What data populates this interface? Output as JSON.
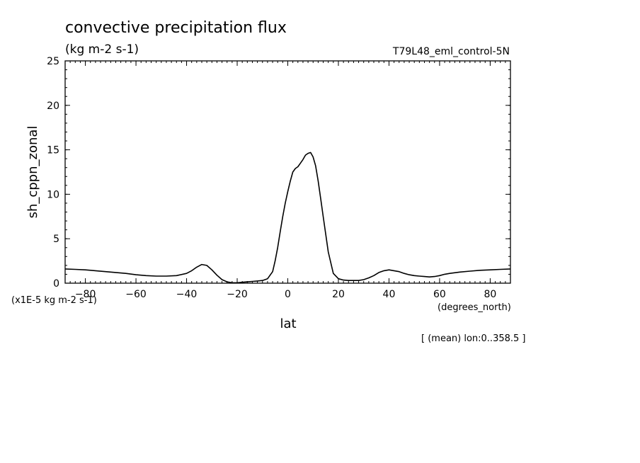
{
  "page": {
    "title": "convective precipitation flux",
    "units": "(kg m-2 s-1)",
    "run_label": "T79L48_eml_control-5N",
    "scale_note": "(x1E-5 kg m-2 s-1)",
    "x_units": "(degrees_north)",
    "footer_note": "[ (mean) lon:0..358.5 ]"
  },
  "chart_data": {
    "type": "line",
    "title": "convective precipitation flux",
    "subtitle": "(kg m-2 s-1)",
    "xlabel": "lat",
    "ylabel": "sh_cppn_zonal",
    "xlim": [
      -88,
      88
    ],
    "ylim": [
      0,
      25
    ],
    "x_ticks": [
      -80,
      -60,
      -40,
      -20,
      0,
      20,
      40,
      60,
      80
    ],
    "y_ticks": [
      0,
      5,
      10,
      15,
      20,
      25
    ],
    "x_tick_labels": [
      "-80",
      "-60",
      "-40",
      "-20",
      "0",
      "20",
      "40",
      "60",
      "80"
    ],
    "y_tick_labels": [
      "0",
      "5",
      "10",
      "15",
      "20",
      "25"
    ],
    "grid": false,
    "series": [
      {
        "color": "#000000",
        "x": [
          -88,
          -84,
          -80,
          -76,
          -72,
          -68,
          -64,
          -60,
          -56,
          -52,
          -48,
          -44,
          -40,
          -38,
          -36,
          -34,
          -32,
          -30,
          -28,
          -26,
          -24,
          -22,
          -20,
          -18,
          -16,
          -14,
          -12,
          -10,
          -8,
          -6,
          -5,
          -4,
          -3,
          -2,
          -1,
          0,
          1,
          2,
          3,
          4,
          5,
          6,
          7,
          8,
          9,
          10,
          11,
          12,
          13,
          14,
          15,
          16,
          18,
          20,
          22,
          24,
          26,
          28,
          30,
          32,
          34,
          36,
          38,
          40,
          42,
          44,
          46,
          48,
          50,
          52,
          54,
          56,
          58,
          60,
          62,
          64,
          68,
          72,
          76,
          80,
          84,
          88
        ],
        "y": [
          1.6,
          1.55,
          1.5,
          1.4,
          1.3,
          1.2,
          1.1,
          0.95,
          0.85,
          0.8,
          0.8,
          0.85,
          1.1,
          1.4,
          1.8,
          2.1,
          2.0,
          1.5,
          0.9,
          0.4,
          0.15,
          0.05,
          0.05,
          0.1,
          0.15,
          0.2,
          0.25,
          0.3,
          0.5,
          1.3,
          2.5,
          4.0,
          5.8,
          7.5,
          9.0,
          10.3,
          11.5,
          12.5,
          12.9,
          13.1,
          13.5,
          13.9,
          14.4,
          14.6,
          14.7,
          14.2,
          13.2,
          11.5,
          9.5,
          7.5,
          5.5,
          3.5,
          1.1,
          0.5,
          0.35,
          0.3,
          0.3,
          0.3,
          0.4,
          0.6,
          0.85,
          1.2,
          1.4,
          1.5,
          1.4,
          1.3,
          1.1,
          0.95,
          0.85,
          0.8,
          0.75,
          0.7,
          0.75,
          0.85,
          1.0,
          1.1,
          1.25,
          1.35,
          1.45,
          1.5,
          1.55,
          1.6
        ]
      }
    ]
  }
}
